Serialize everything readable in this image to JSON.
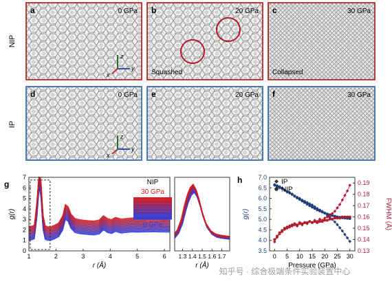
{
  "row_labels": {
    "nip": "NIP",
    "ip": "IP"
  },
  "panels": [
    {
      "letter": "a",
      "pressure": "0 GPa",
      "caption": "",
      "axes": true,
      "row": "nip"
    },
    {
      "letter": "b",
      "pressure": "20 GPa",
      "caption": "Squashed",
      "axes": false,
      "row": "nip"
    },
    {
      "letter": "c",
      "pressure": "30 GPa",
      "caption": "Collapsed",
      "axes": false,
      "row": "nip"
    },
    {
      "letter": "d",
      "pressure": "0 GPa",
      "caption": "",
      "axes": true,
      "row": "ip"
    },
    {
      "letter": "e",
      "pressure": "20 GPa",
      "caption": "",
      "axes": false,
      "row": "ip"
    },
    {
      "letter": "f",
      "pressure": "30 GPa",
      "caption": "",
      "axes": false,
      "row": "ip"
    }
  ],
  "axis_triad": {
    "z": "z",
    "y": "y",
    "x": "x"
  },
  "colors": {
    "nip": "#b52828",
    "ip": "#3a6fa5",
    "frame_nip": "#b52828",
    "frame_ip": "#3a6fa5",
    "high": "#d41c1c",
    "low": "#2b3fe0",
    "ring": "#b3162a"
  },
  "watermark": "知乎号 · 综合极端条件实验装置中心",
  "chart_data": [
    {
      "id": "g",
      "letter": "g",
      "type": "line",
      "xlabel": "r (Å)",
      "ylabel": "g(r)",
      "xlim": [
        1,
        6.2
      ],
      "ylim": [
        0,
        7
      ],
      "xticks": [
        1,
        2,
        3,
        4,
        5,
        6
      ],
      "yticks": [
        0,
        1,
        2,
        3,
        4,
        5,
        6,
        7
      ],
      "legend": {
        "title": "NIP",
        "high": "30 GPa",
        "low": "0 GPa"
      },
      "series_count": 16,
      "offset_step": 0.085,
      "profile_x": [
        1.0,
        1.1,
        1.2,
        1.3,
        1.38,
        1.45,
        1.52,
        1.6,
        1.7,
        1.8,
        1.95,
        2.1,
        2.25,
        2.35,
        2.45,
        2.55,
        2.7,
        2.85,
        3.0,
        3.2,
        3.4,
        3.6,
        3.75,
        3.9,
        4.05,
        4.2,
        4.4,
        4.6,
        4.8,
        5.0,
        5.3,
        5.6,
        5.9,
        6.2
      ],
      "profile_y": [
        0.25,
        0.25,
        0.35,
        2.5,
        5.3,
        4.2,
        1.3,
        0.3,
        0.2,
        0.2,
        0.35,
        0.55,
        1.2,
        2.2,
        2.0,
        1.35,
        0.95,
        0.85,
        0.8,
        0.75,
        0.72,
        0.82,
        1.2,
        0.95,
        0.85,
        1.05,
        0.9,
        0.95,
        1.0,
        0.98,
        1.0,
        1.02,
        1.0,
        1.0
      ]
    },
    {
      "id": "g-inset",
      "type": "line",
      "xlabel": "r (Å)",
      "xlim": [
        1.22,
        1.78
      ],
      "ylim": [
        0,
        7
      ],
      "xticks": [
        1.3,
        1.4,
        1.5,
        1.6,
        1.7
      ],
      "series_count": 16,
      "profile_x": [
        1.22,
        1.26,
        1.3,
        1.33,
        1.36,
        1.39,
        1.42,
        1.45,
        1.48,
        1.51,
        1.55,
        1.6,
        1.65,
        1.7,
        1.78
      ],
      "profile_y": [
        1.3,
        1.8,
        2.8,
        4.0,
        5.0,
        5.7,
        6.0,
        5.5,
        4.6,
        3.5,
        2.4,
        1.7,
        1.4,
        1.3,
        1.2
      ]
    },
    {
      "id": "h",
      "letter": "h",
      "type": "scatter",
      "xlabel": "Pressure (GPa)",
      "ylabel": "g(r)",
      "ylabel2": "FWHM (Å)",
      "xlim": [
        -2,
        32
      ],
      "ylim": [
        3.5,
        7.0
      ],
      "ylim2": [
        0.13,
        0.195
      ],
      "xticks": [
        0,
        5,
        10,
        15,
        20,
        25,
        30
      ],
      "yticks": [
        3.5,
        4.0,
        4.5,
        5.0,
        5.5,
        6.0,
        6.5,
        7.0
      ],
      "yticks2": [
        0.13,
        0.14,
        0.15,
        0.16,
        0.17,
        0.18,
        0.19
      ],
      "legend": [
        {
          "label": "IP",
          "marker": "diamond"
        },
        {
          "label": "NIP",
          "marker": "circle"
        }
      ],
      "series": [
        {
          "axis": "left",
          "marker": "diamond",
          "color": "#1f3f7a",
          "x": [
            0,
            1,
            2,
            3,
            4,
            5,
            6,
            7,
            8,
            9,
            10,
            11,
            12,
            13,
            14,
            15,
            16,
            17,
            18,
            19,
            20,
            21,
            22,
            23,
            24,
            25,
            26,
            27,
            28,
            29,
            30
          ],
          "y": [
            6.62,
            6.55,
            6.5,
            6.46,
            6.38,
            6.3,
            6.25,
            6.18,
            6.12,
            6.05,
            6.0,
            5.92,
            5.86,
            5.8,
            5.74,
            5.68,
            5.6,
            5.52,
            5.45,
            5.38,
            5.3,
            5.2,
            5.1,
            5.0,
            4.88,
            4.75,
            4.6,
            4.45,
            4.28,
            4.12,
            3.95
          ]
        },
        {
          "axis": "left",
          "marker": "circle",
          "color": "#1f3f7a",
          "x": [
            0,
            1,
            2,
            3,
            4,
            5,
            6,
            7,
            8,
            9,
            10,
            11,
            12,
            13,
            14,
            15,
            16,
            17,
            18,
            19,
            20,
            21,
            22,
            23,
            24,
            25,
            26,
            27,
            28,
            29,
            30
          ],
          "y": [
            6.65,
            6.6,
            6.55,
            6.48,
            6.4,
            6.32,
            6.27,
            6.2,
            6.1,
            6.02,
            5.95,
            5.87,
            5.8,
            5.72,
            5.65,
            5.58,
            5.52,
            5.45,
            5.4,
            5.35,
            5.3,
            5.26,
            5.22,
            5.18,
            5.15,
            5.12,
            5.1,
            5.08,
            5.06,
            5.05,
            5.04
          ]
        },
        {
          "axis": "right",
          "marker": "diamond",
          "color": "#b01c2e",
          "x": [
            0,
            1,
            2,
            3,
            4,
            5,
            6,
            7,
            8,
            9,
            10,
            11,
            12,
            13,
            14,
            15,
            16,
            17,
            18,
            19,
            20,
            21,
            22,
            23,
            24,
            25,
            26,
            27,
            28,
            29,
            30
          ],
          "y": [
            0.138,
            0.142,
            0.145,
            0.147,
            0.149,
            0.15,
            0.151,
            0.152,
            0.153,
            0.152,
            0.154,
            0.153,
            0.155,
            0.154,
            0.156,
            0.155,
            0.157,
            0.156,
            0.158,
            0.157,
            0.159,
            0.16,
            0.161,
            0.163,
            0.165,
            0.168,
            0.171,
            0.175,
            0.179,
            0.183,
            0.188
          ]
        },
        {
          "axis": "right",
          "marker": "circle",
          "color": "#b01c2e",
          "x": [
            0,
            1,
            2,
            3,
            4,
            5,
            6,
            7,
            8,
            9,
            10,
            11,
            12,
            13,
            14,
            15,
            16,
            17,
            18,
            19,
            20,
            21,
            22,
            23,
            24,
            25,
            26,
            27,
            28,
            29,
            30
          ],
          "y": [
            0.14,
            0.143,
            0.146,
            0.148,
            0.15,
            0.151,
            0.152,
            0.153,
            0.154,
            0.153,
            0.155,
            0.154,
            0.155,
            0.155,
            0.156,
            0.155,
            0.156,
            0.155,
            0.156,
            0.156,
            0.157,
            0.157,
            0.158,
            0.158,
            0.159,
            0.159,
            0.159,
            0.16,
            0.16,
            0.16,
            0.16
          ]
        }
      ]
    }
  ]
}
